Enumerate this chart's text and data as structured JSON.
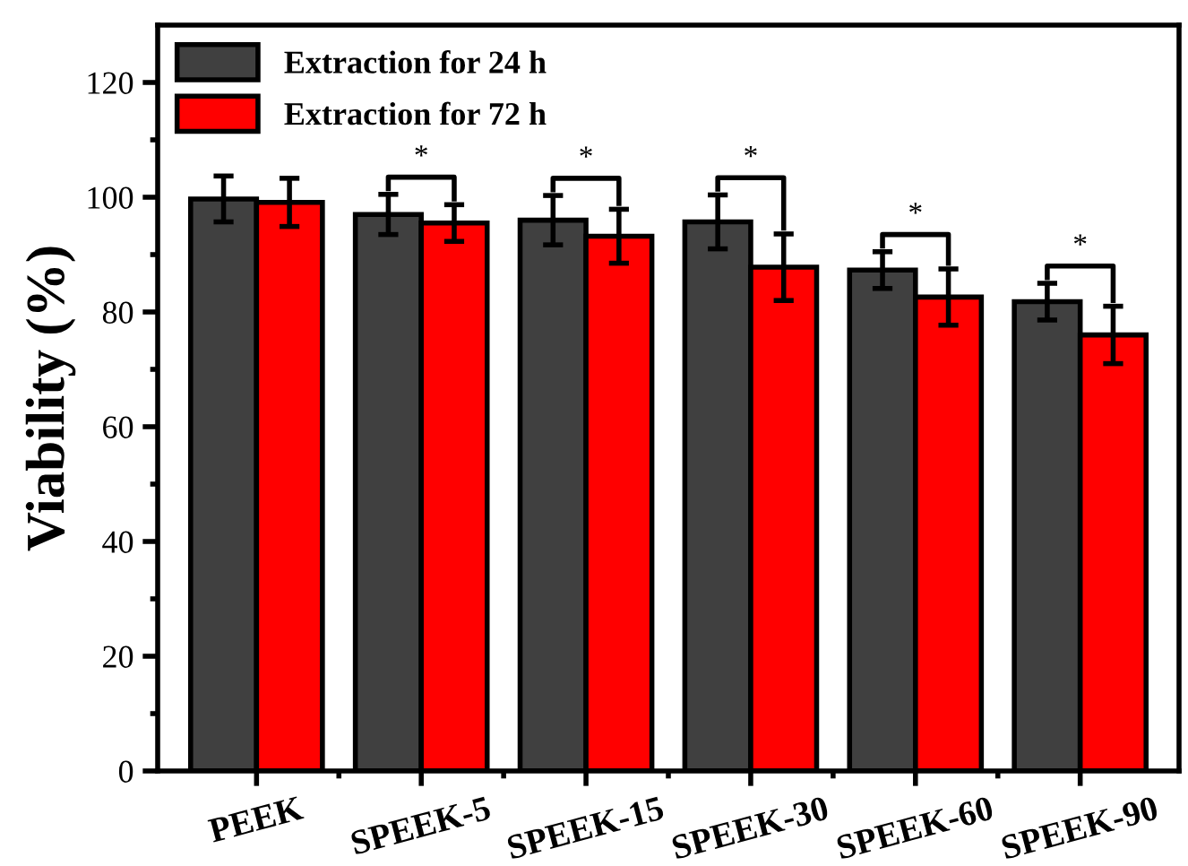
{
  "chart_data": {
    "type": "bar",
    "ylabel": "Viability (%)",
    "categories": [
      "PEEK",
      "SPEEK-5",
      "SPEEK-15",
      "SPEEK-30",
      "SPEEK-60",
      "SPEEK-90"
    ],
    "series": [
      {
        "name": "Extraction for 24 h",
        "color": "#404040",
        "values": [
          99.7,
          97,
          96,
          95.7,
          87.3,
          81.8
        ],
        "errors": [
          4,
          3.5,
          4.3,
          4.7,
          3.2,
          3.2
        ]
      },
      {
        "name": "Extraction for 72 h",
        "color": "#ff0000",
        "values": [
          99.1,
          95.5,
          93.2,
          87.8,
          82.6,
          76
        ],
        "errors": [
          4.2,
          3.2,
          4.7,
          5.8,
          4.9,
          5
        ]
      }
    ],
    "annotations": [
      "*",
      "*",
      "*",
      "*",
      "*"
    ],
    "ylim": [
      0,
      130
    ],
    "yticks": [
      0,
      20,
      40,
      60,
      80,
      100,
      120
    ],
    "grid": false,
    "legend": "top left"
  }
}
